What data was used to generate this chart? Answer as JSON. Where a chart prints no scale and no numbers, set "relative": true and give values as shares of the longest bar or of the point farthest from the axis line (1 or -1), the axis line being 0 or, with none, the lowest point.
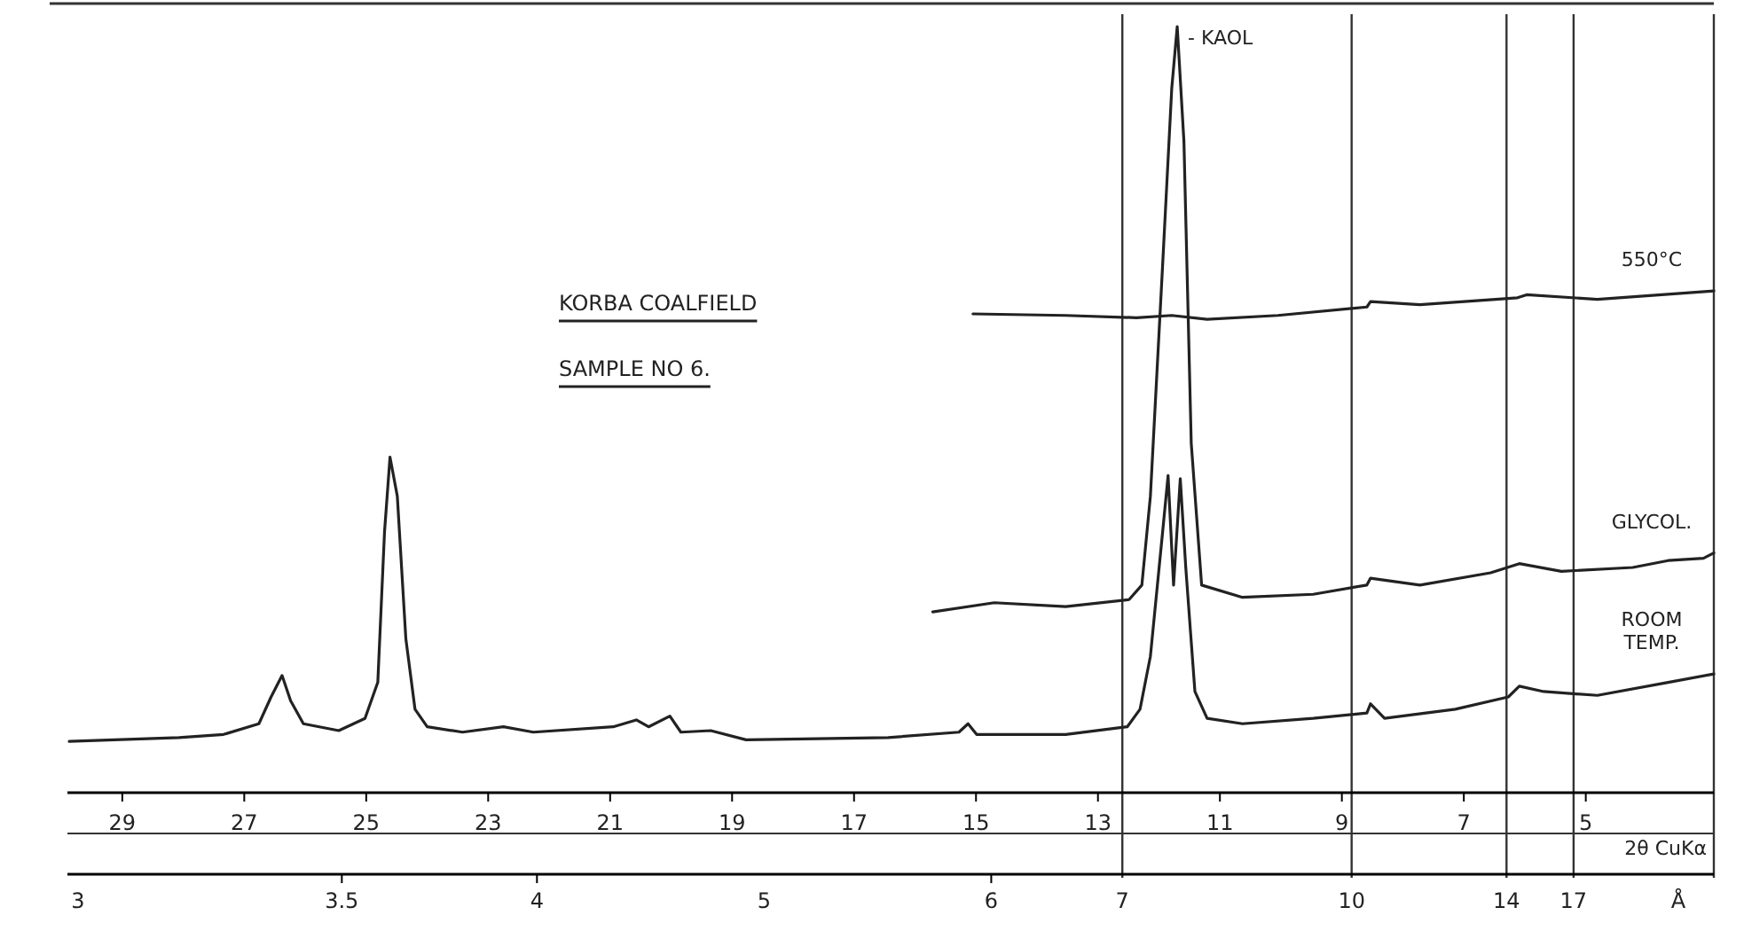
{
  "chart_data": {
    "type": "line",
    "title": "KORBA COALFIELD",
    "subtitle": "SAMPLE NO 6.",
    "xlabel": "2θ CuKα",
    "relative": true,
    "grid": false,
    "legend": false,
    "marker": "none",
    "line_style": "solid",
    "xlim": [
      29.9,
      2.9
    ],
    "xticks": [
      29,
      27,
      25,
      23,
      21,
      19,
      17,
      15,
      13,
      11,
      9,
      7,
      5
    ],
    "ref_lines": [
      {
        "axis": "x",
        "value": 12.6,
        "color": "#333333"
      },
      {
        "axis": "x",
        "value": 8.84,
        "color": "#333333"
      },
      {
        "axis": "x",
        "value": 6.3,
        "color": "#333333"
      },
      {
        "axis": "x",
        "value": 5.2,
        "color": "#333333"
      }
    ],
    "annotations": [
      {
        "text": "- KAOL",
        "x": 11.7,
        "y": 1
      },
      "3",
      {
        "text": "3.5",
        "x": 25.4
      },
      {
        "text": "4",
        "x": 22.2
      },
      "5",
      {
        "text": "6",
        "x": 14.75
      },
      "7",
      "10",
      "14",
      "17",
      "Å"
    ],
    "series": [
      {
        "name": "550°C",
        "color": "#222222",
        "x": [
          15.05,
          13.53,
          12.37,
          11.79,
          11.21,
          10.05,
          8.59,
          8.53,
          7.72,
          6.12,
          5.97,
          4.81,
          2.9
        ],
        "values": [
          0.625,
          0.623,
          0.62,
          0.623,
          0.618,
          0.623,
          0.634,
          0.641,
          0.637,
          0.646,
          0.65,
          0.644,
          0.655
        ]
      },
      {
        "name": "GLYCOL.",
        "color": "#222222",
        "x": [
          15.71,
          14.7,
          13.53,
          12.49,
          12.28,
          12.14,
          11.94,
          11.79,
          11.7,
          11.59,
          11.47,
          11.3,
          10.63,
          9.47,
          8.59,
          8.53,
          7.72,
          6.56,
          6.09,
          5.4,
          4.23,
          3.65,
          3.07,
          2.9
        ],
        "values": [
          0.236,
          0.248,
          0.243,
          0.252,
          0.271,
          0.387,
          0.688,
          0.919,
          1,
          0.85,
          0.456,
          0.271,
          0.255,
          0.259,
          0.271,
          0.28,
          0.271,
          0.287,
          0.299,
          0.289,
          0.294,
          0.303,
          0.306,
          0.313
        ]
      },
      {
        "name": "ROOM TEMP.",
        "color": "#222222",
        "x": [
          29.87,
          28.07,
          27.34,
          26.76,
          26.56,
          26.38,
          26.24,
          26.03,
          25.45,
          25.02,
          24.81,
          24.7,
          24.61,
          24.49,
          24.35,
          24.2,
          24,
          23.42,
          22.75,
          22.26,
          20.95,
          20.57,
          20.37,
          20.02,
          19.84,
          19.35,
          18.77,
          16.44,
          15.28,
          15.13,
          14.99,
          13.53,
          12.52,
          12.31,
          12.14,
          11.94,
          11.85,
          11.76,
          11.65,
          11.56,
          11.41,
          11.21,
          10.63,
          9.47,
          8.59,
          8.53,
          8.3,
          7.14,
          6.27,
          6.09,
          5.69,
          4.81,
          3.65,
          2.9
        ],
        "values": [
          0.067,
          0.072,
          0.076,
          0.09,
          0.125,
          0.153,
          0.12,
          0.09,
          0.081,
          0.097,
          0.144,
          0.34,
          0.438,
          0.387,
          0.201,
          0.109,
          0.086,
          0.079,
          0.086,
          0.079,
          0.086,
          0.095,
          0.086,
          0.1,
          0.079,
          0.081,
          0.069,
          0.072,
          0.079,
          0.09,
          0.076,
          0.076,
          0.086,
          0.109,
          0.178,
          0.34,
          0.414,
          0.271,
          0.41,
          0.294,
          0.132,
          0.097,
          0.09,
          0.097,
          0.104,
          0.116,
          0.097,
          0.109,
          0.125,
          0.139,
          0.132,
          0.127,
          0.144,
          0.155
        ]
      }
    ]
  }
}
